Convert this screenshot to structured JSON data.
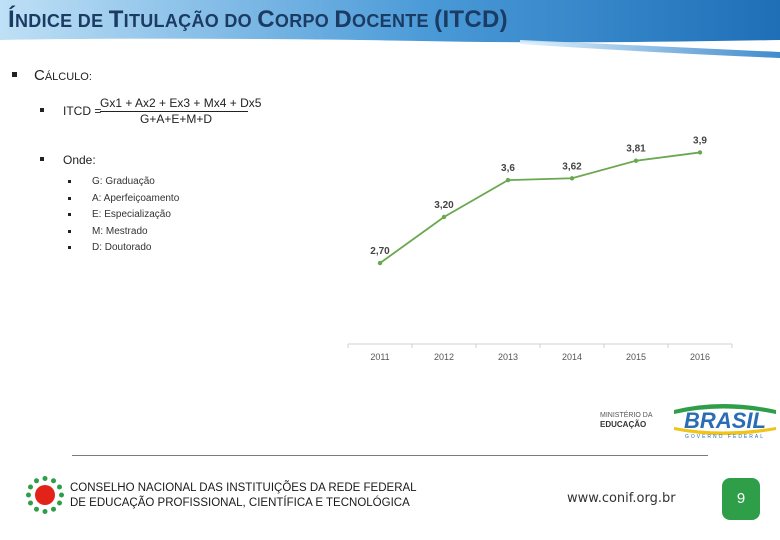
{
  "slide": {
    "title_parts": {
      "i": "Í",
      "ndice": "NDICE DE ",
      "t": "T",
      "itulacao": "ITULAÇÃO DO ",
      "c": "C",
      "orpo": "ORPO ",
      "d": "D",
      "ocente": "OCENTE ",
      "abbr": "(ITCD)"
    },
    "calculo": {
      "first": "C",
      "rest": "ÁLCULO:"
    },
    "formula": {
      "label": "ITCD =",
      "numerator": "Gx1 + Ax2 + Ex3 + Mx4 + Dx5",
      "denominator": "G+A+E+M+D"
    },
    "onde_label": "Onde:",
    "legend": [
      "G: Graduação",
      "A: Aperfeiçoamento",
      "E: Especialização",
      "M: Mestrado",
      "D: Doutorado"
    ]
  },
  "chart_data": {
    "type": "line",
    "categories": [
      "2011",
      "2012",
      "2013",
      "2014",
      "2015",
      "2016"
    ],
    "values": [
      2.7,
      3.2,
      3.6,
      3.62,
      3.81,
      3.9
    ],
    "data_labels": [
      "2,70",
      "3,20",
      "3,6",
      "3,62",
      "3,81",
      "3,9"
    ],
    "title": "",
    "xlabel": "",
    "ylabel": "",
    "line_color": "#6aa84f"
  },
  "footer": {
    "org_line1": "CONSELHO NACIONAL DAS INSTITUIÇÕES DA REDE FEDERAL",
    "org_line2": "DE EDUCAÇÃO PROFISSIONAL, CIENTÍFICA E TECNOLÓGICA",
    "website": "www.conif.org.br",
    "page_number": "9",
    "ministry_line1": "MINISTÉRIO DA",
    "ministry_line2": "EDUCAÇÃO",
    "brasil_logo_text": "BRASIL",
    "brasil_logo_tagline": "GOVERNO FEDERAL"
  },
  "colors": {
    "title": "#1b3b63",
    "header_blue": "#2a7ec8",
    "accent_green": "#2f9e48",
    "logo_red": "#e2231a"
  }
}
